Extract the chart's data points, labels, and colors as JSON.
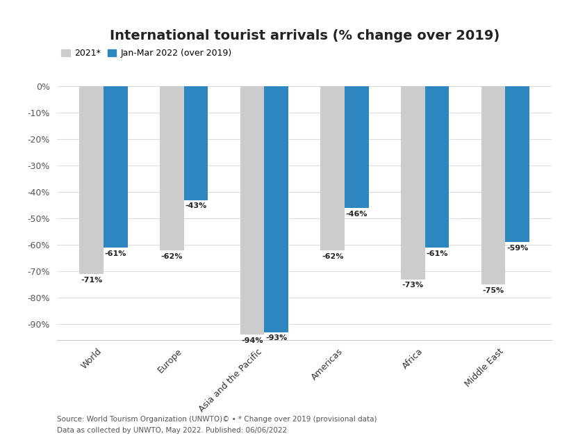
{
  "title": "International tourist arrivals (% change over 2019)",
  "categories": [
    "World",
    "Europe",
    "Asia and the Pacific",
    "Americas",
    "Africa",
    "Middle East"
  ],
  "values_2021": [
    -71,
    -62,
    -94,
    -62,
    -73,
    -75
  ],
  "values_2022": [
    -61,
    -43,
    -93,
    -46,
    -61,
    -59
  ],
  "labels_2021": [
    "-71%",
    "-62%",
    "-94%",
    "-62%",
    "-73%",
    "-75%"
  ],
  "labels_2022": [
    "-61%",
    "-43%",
    "-93%",
    "-46%",
    "-61%",
    "-59%"
  ],
  "color_2021": "#cccccc",
  "color_2022": "#2e86c1",
  "legend_2021": "2021*",
  "legend_2022": "Jan-Mar 2022 (over 2019)",
  "ylim": [
    -96,
    3
  ],
  "yticks": [
    0,
    -10,
    -20,
    -30,
    -40,
    -50,
    -60,
    -70,
    -80,
    -90
  ],
  "ytick_labels": [
    "0%",
    "-10%",
    "-20%",
    "-30%",
    "-40%",
    "-50%",
    "-60%",
    "-70%",
    "-80%",
    "-90%"
  ],
  "bar_width": 0.3,
  "source_line1": "Source: World Tourism Organization (UNWTO)© • * Change over 2019 (provisional data)",
  "source_line2": "Data as collected by UNWTO, May 2022. Published: 06/06/2022",
  "background_color": "#ffffff",
  "title_fontsize": 14,
  "label_fontsize": 8,
  "tick_fontsize": 9,
  "legend_fontsize": 9,
  "source_fontsize": 7.5
}
